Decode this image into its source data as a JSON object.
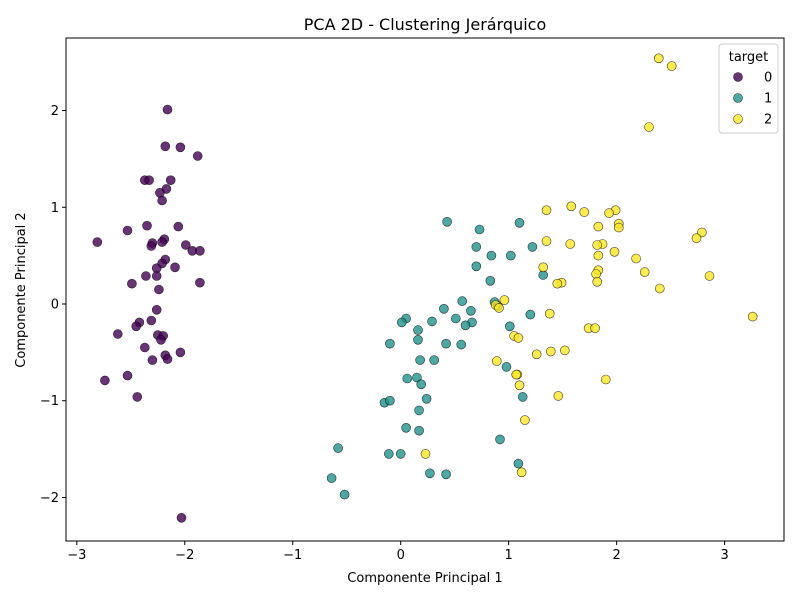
{
  "chart_data": {
    "type": "scatter",
    "title": "PCA 2D - Clustering Jerárquico",
    "xlabel": "Componente Principal 1",
    "ylabel": "Componente Principal 2",
    "xlim": [
      -3.1,
      3.55
    ],
    "ylim": [
      -2.45,
      2.75
    ],
    "xticks": [
      -3,
      -2,
      -1,
      0,
      1,
      2,
      3
    ],
    "yticks": [
      -2,
      -1,
      0,
      1,
      2
    ],
    "xtick_labels": [
      "−3",
      "−2",
      "−1",
      "0",
      "1",
      "2",
      "3"
    ],
    "ytick_labels": [
      "−2",
      "−1",
      "0",
      "1",
      "2"
    ],
    "legend": {
      "title": "target",
      "location": "top-right"
    },
    "series": [
      {
        "name": "0",
        "color": "#440154",
        "points": [
          [
            -2.16,
            2.01
          ],
          [
            -2.18,
            1.63
          ],
          [
            -2.04,
            1.62
          ],
          [
            -1.88,
            1.53
          ],
          [
            -2.37,
            1.28
          ],
          [
            -2.33,
            1.28
          ],
          [
            -2.13,
            1.28
          ],
          [
            -2.17,
            1.19
          ],
          [
            -2.23,
            1.15
          ],
          [
            -2.21,
            1.07
          ],
          [
            -2.35,
            0.81
          ],
          [
            -2.06,
            0.8
          ],
          [
            -2.53,
            0.76
          ],
          [
            -2.81,
            0.64
          ],
          [
            -2.19,
            0.67
          ],
          [
            -2.21,
            0.64
          ],
          [
            -2.3,
            0.63
          ],
          [
            -2.31,
            0.6
          ],
          [
            -1.99,
            0.61
          ],
          [
            -1.93,
            0.55
          ],
          [
            -1.86,
            0.55
          ],
          [
            -2.18,
            0.46
          ],
          [
            -2.21,
            0.42
          ],
          [
            -2.26,
            0.37
          ],
          [
            -2.09,
            0.38
          ],
          [
            -2.26,
            0.29
          ],
          [
            -2.36,
            0.29
          ],
          [
            -2.49,
            0.21
          ],
          [
            -1.86,
            0.22
          ],
          [
            -2.24,
            0.15
          ],
          [
            -2.26,
            -0.06
          ],
          [
            -2.31,
            -0.17
          ],
          [
            -2.42,
            -0.19
          ],
          [
            -2.45,
            -0.23
          ],
          [
            -2.62,
            -0.31
          ],
          [
            -2.25,
            -0.32
          ],
          [
            -2.2,
            -0.33
          ],
          [
            -2.22,
            -0.37
          ],
          [
            -2.37,
            -0.45
          ],
          [
            -2.04,
            -0.5
          ],
          [
            -2.18,
            -0.53
          ],
          [
            -2.16,
            -0.57
          ],
          [
            -2.3,
            -0.58
          ],
          [
            -2.53,
            -0.74
          ],
          [
            -2.74,
            -0.79
          ],
          [
            -2.44,
            -0.96
          ],
          [
            -2.03,
            -2.21
          ]
        ]
      },
      {
        "name": "1",
        "color": "#21918c",
        "points": [
          [
            0.43,
            0.85
          ],
          [
            1.1,
            0.84
          ],
          [
            0.73,
            0.77
          ],
          [
            0.7,
            0.59
          ],
          [
            1.22,
            0.59
          ],
          [
            0.84,
            0.5
          ],
          [
            1.02,
            0.5
          ],
          [
            0.7,
            0.39
          ],
          [
            1.32,
            0.3
          ],
          [
            0.83,
            0.24
          ],
          [
            0.87,
            0.02
          ],
          [
            0.57,
            0.03
          ],
          [
            0.4,
            -0.05
          ],
          [
            0.65,
            -0.07
          ],
          [
            0.9,
            -0.02
          ],
          [
            1.2,
            -0.11
          ],
          [
            0.05,
            -0.15
          ],
          [
            0.51,
            -0.15
          ],
          [
            0.01,
            -0.19
          ],
          [
            0.29,
            -0.18
          ],
          [
            0.66,
            -0.19
          ],
          [
            0.6,
            -0.22
          ],
          [
            1.01,
            -0.23
          ],
          [
            0.16,
            -0.27
          ],
          [
            0.16,
            -0.37
          ],
          [
            -0.1,
            -0.41
          ],
          [
            0.42,
            -0.41
          ],
          [
            0.56,
            -0.42
          ],
          [
            0.18,
            -0.58
          ],
          [
            0.31,
            -0.58
          ],
          [
            0.98,
            -0.65
          ],
          [
            0.06,
            -0.77
          ],
          [
            0.15,
            -0.76
          ],
          [
            0.19,
            -0.83
          ],
          [
            0.24,
            -0.98
          ],
          [
            1.13,
            -0.96
          ],
          [
            -0.15,
            -1.02
          ],
          [
            -0.1,
            -1.0
          ],
          [
            0.17,
            -1.1
          ],
          [
            0.05,
            -1.28
          ],
          [
            0.17,
            -1.31
          ],
          [
            0.92,
            -1.4
          ],
          [
            -0.58,
            -1.49
          ],
          [
            -0.11,
            -1.55
          ],
          [
            0.0,
            -1.55
          ],
          [
            1.09,
            -1.65
          ],
          [
            0.27,
            -1.75
          ],
          [
            0.42,
            -1.76
          ],
          [
            -0.64,
            -1.8
          ],
          [
            -0.52,
            -1.97
          ]
        ]
      },
      {
        "name": "2",
        "color": "#fde725",
        "points": [
          [
            2.39,
            2.54
          ],
          [
            2.51,
            2.46
          ],
          [
            2.3,
            1.83
          ],
          [
            1.58,
            1.01
          ],
          [
            1.99,
            0.97
          ],
          [
            1.35,
            0.97
          ],
          [
            1.7,
            0.95
          ],
          [
            1.93,
            0.94
          ],
          [
            2.02,
            0.83
          ],
          [
            2.02,
            0.79
          ],
          [
            1.83,
            0.8
          ],
          [
            2.79,
            0.74
          ],
          [
            2.74,
            0.68
          ],
          [
            1.35,
            0.65
          ],
          [
            1.57,
            0.62
          ],
          [
            1.87,
            0.62
          ],
          [
            1.82,
            0.61
          ],
          [
            1.98,
            0.54
          ],
          [
            1.83,
            0.5
          ],
          [
            2.18,
            0.47
          ],
          [
            1.32,
            0.38
          ],
          [
            1.83,
            0.35
          ],
          [
            2.26,
            0.33
          ],
          [
            1.81,
            0.31
          ],
          [
            2.86,
            0.29
          ],
          [
            1.49,
            0.22
          ],
          [
            1.45,
            0.21
          ],
          [
            1.82,
            0.23
          ],
          [
            2.4,
            0.16
          ],
          [
            0.96,
            0.04
          ],
          [
            0.88,
            -0.01
          ],
          [
            0.91,
            -0.04
          ],
          [
            1.38,
            -0.1
          ],
          [
            3.26,
            -0.13
          ],
          [
            1.74,
            -0.25
          ],
          [
            1.8,
            -0.25
          ],
          [
            1.05,
            -0.33
          ],
          [
            1.09,
            -0.35
          ],
          [
            1.26,
            -0.52
          ],
          [
            1.39,
            -0.49
          ],
          [
            1.52,
            -0.48
          ],
          [
            0.89,
            -0.59
          ],
          [
            1.08,
            -0.73
          ],
          [
            1.07,
            -0.73
          ],
          [
            1.9,
            -0.78
          ],
          [
            1.1,
            -0.84
          ],
          [
            1.46,
            -0.95
          ],
          [
            1.15,
            -1.2
          ],
          [
            0.23,
            -1.55
          ],
          [
            1.12,
            -1.74
          ]
        ]
      }
    ]
  }
}
